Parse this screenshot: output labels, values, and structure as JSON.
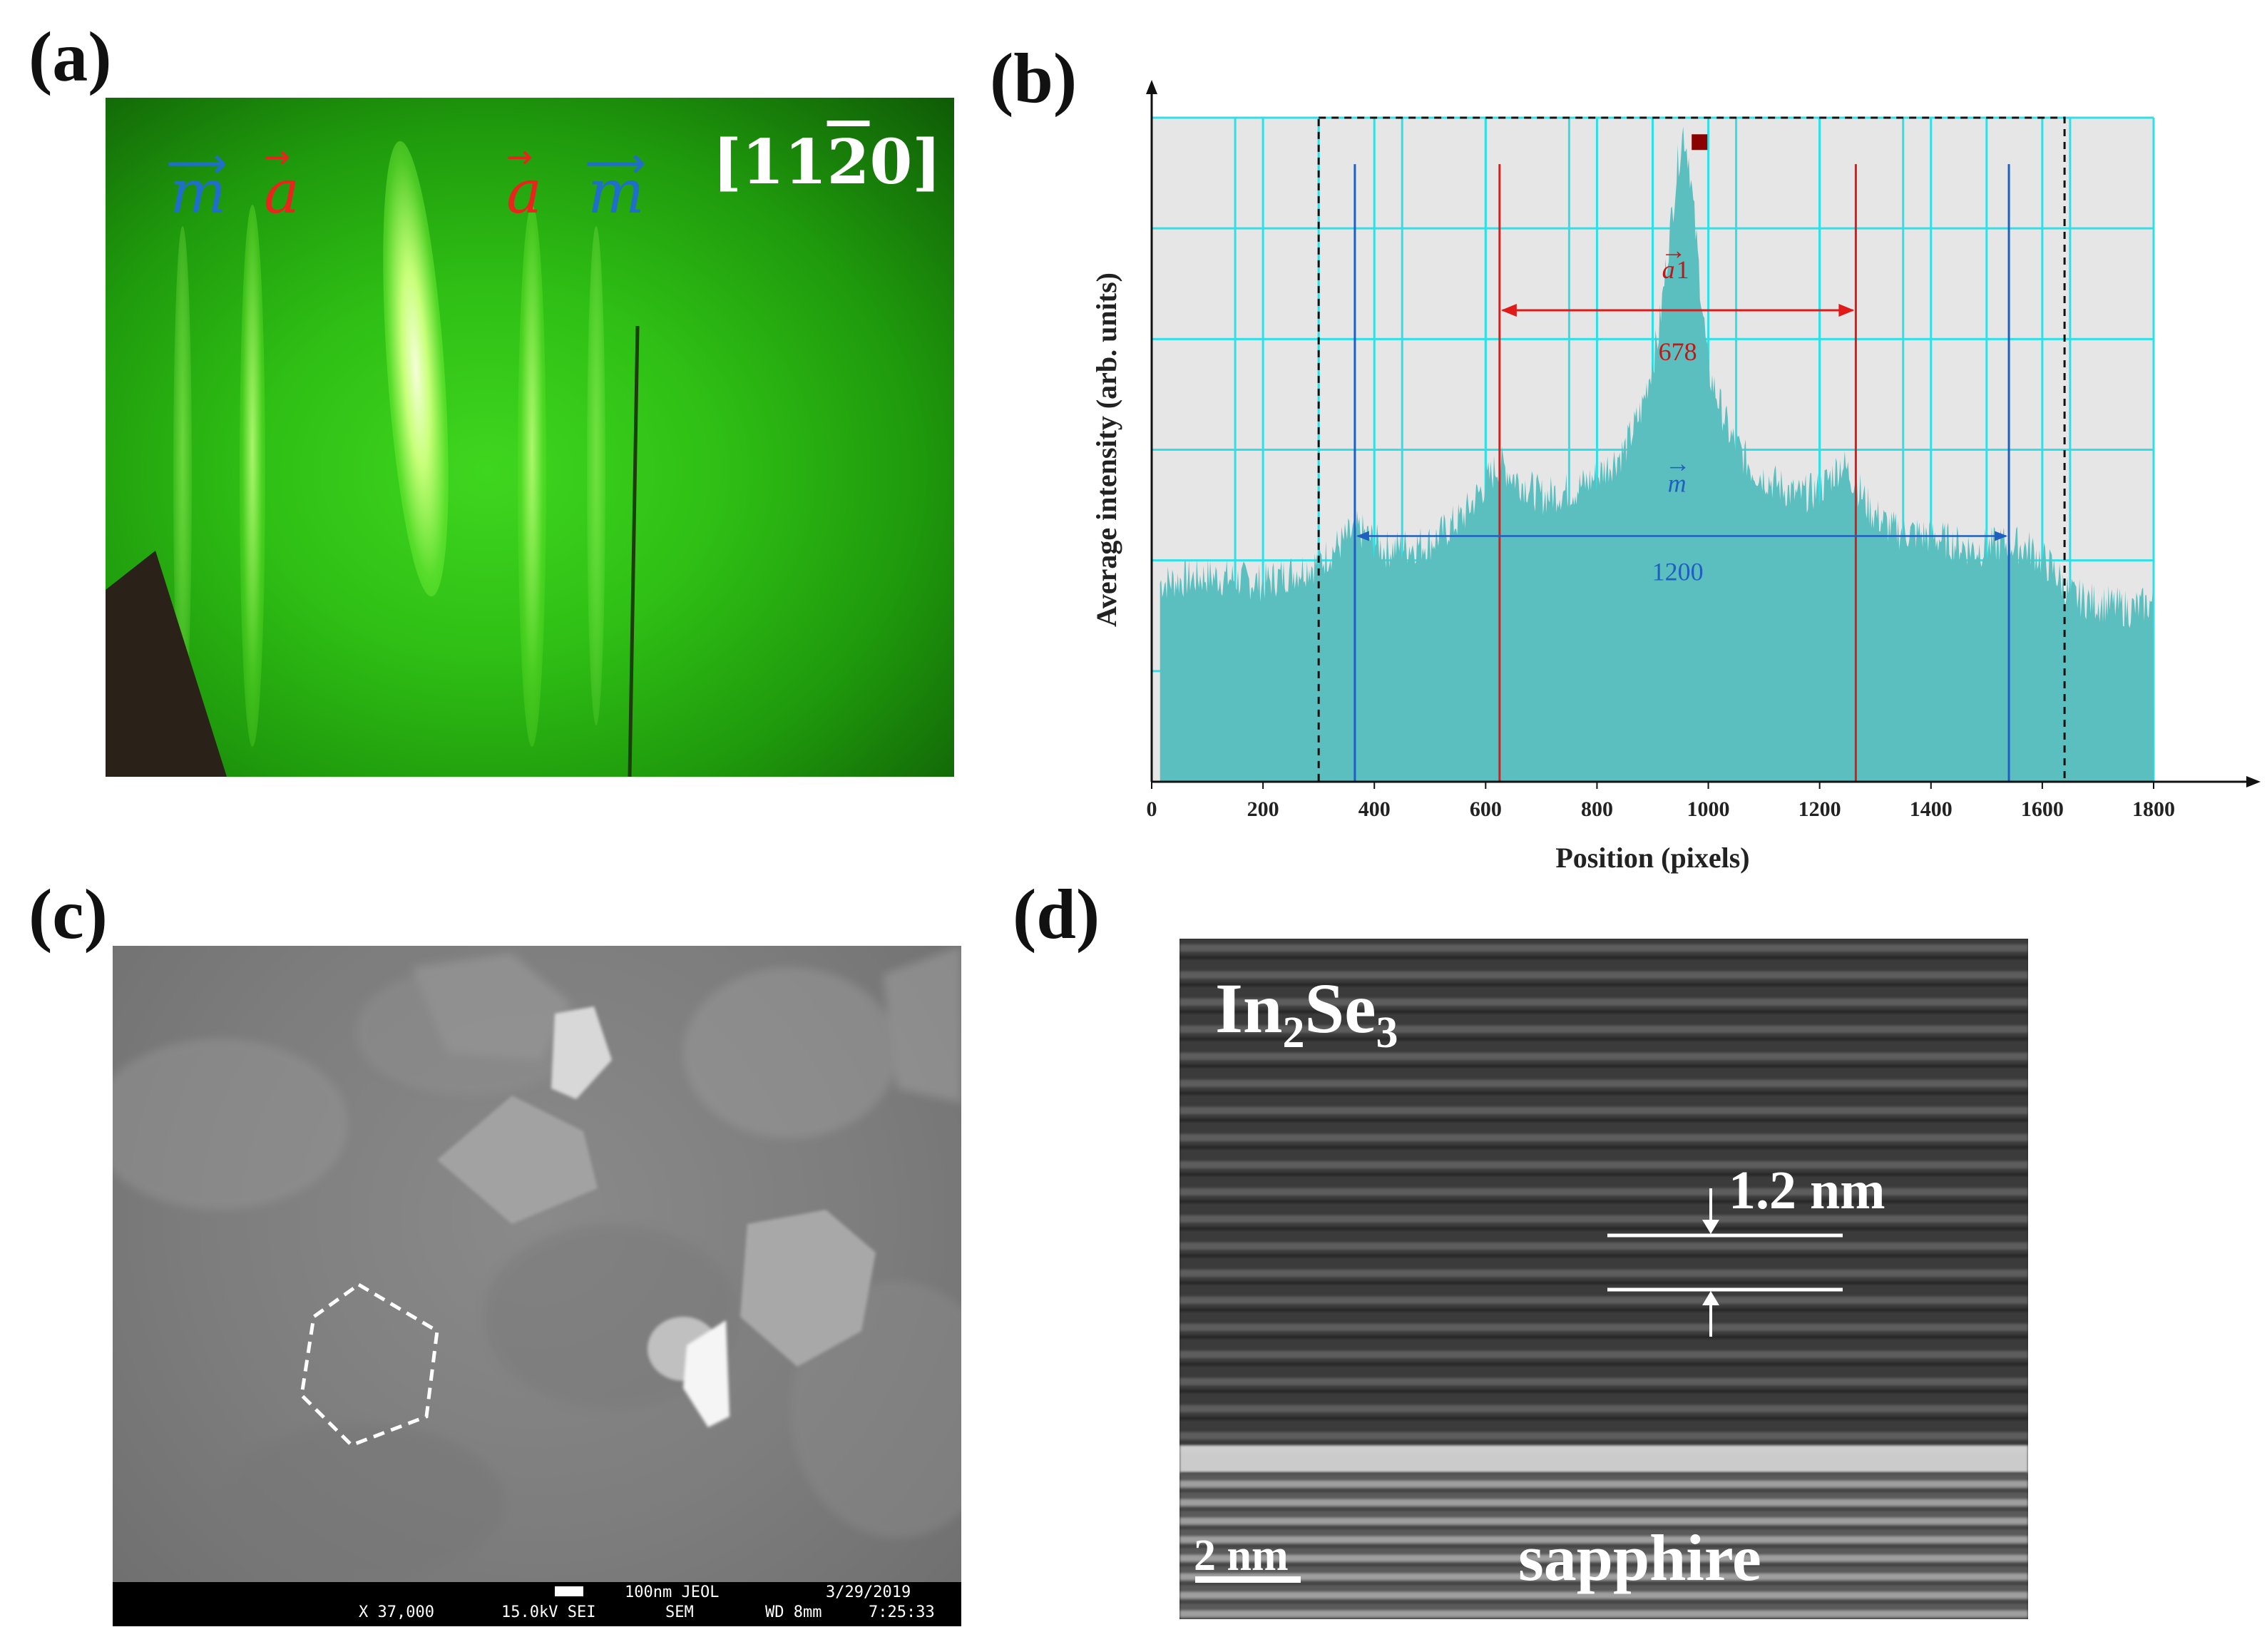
{
  "panels": {
    "a": {
      "label": "(a)",
      "streak_labels": [
        "m",
        "a",
        "a",
        "m"
      ],
      "zone_axis": "[11",
      "zone_axis_bar": "2",
      "zone_axis_end": "0]",
      "colors": {
        "m": "#1f6fc9",
        "a": "#e8251c"
      }
    },
    "b": {
      "label": "(b)"
    },
    "c": {
      "label": "(c)",
      "sem_info": {
        "scale": "100nm JEOL",
        "date": "3/29/2019",
        "magnification": "X 37,000",
        "voltage": "15.0kV SEI",
        "mode": "SEM",
        "wd": "WD 8mm",
        "time": "7:25:33"
      }
    },
    "d": {
      "label": "(d)",
      "material_main": "In",
      "material_sub1": "2",
      "material_mid": "Se",
      "material_sub2": "3",
      "spacing_label": "1.2 nm",
      "scale_label": "2 nm",
      "substrate_label": "sapphire"
    }
  },
  "chart_data": {
    "type": "area",
    "xlabel": "Position (pixels)",
    "ylabel": "Average intensity (arb. units)",
    "xlim": [
      0,
      1800
    ],
    "x_ticks": [
      0,
      200,
      400,
      600,
      800,
      1000,
      1200,
      1400,
      1600,
      1800
    ],
    "grid": true,
    "fill_color": "#5bbfbf",
    "grid_color": "#2fe0e8",
    "profile": {
      "x": [
        15,
        100,
        200,
        300,
        340,
        370,
        420,
        500,
        560,
        600,
        625,
        650,
        700,
        760,
        800,
        850,
        880,
        910,
        930,
        945,
        955,
        965,
        980,
        1000,
        1040,
        1080,
        1120,
        1160,
        1200,
        1240,
        1265,
        1290,
        1330,
        1400,
        1480,
        1540,
        1580,
        1620,
        1650,
        1700,
        1760,
        1800
      ],
      "y": [
        0.3,
        0.31,
        0.3,
        0.33,
        0.36,
        0.38,
        0.35,
        0.36,
        0.4,
        0.45,
        0.48,
        0.46,
        0.43,
        0.44,
        0.46,
        0.5,
        0.56,
        0.67,
        0.82,
        0.93,
        0.98,
        0.94,
        0.8,
        0.62,
        0.52,
        0.47,
        0.45,
        0.43,
        0.44,
        0.48,
        0.45,
        0.41,
        0.38,
        0.37,
        0.35,
        0.36,
        0.35,
        0.32,
        0.28,
        0.27,
        0.26,
        0.27
      ]
    },
    "peak_marker_x": 965,
    "dashed_box_x": [
      300,
      1640
    ],
    "red_lines_x": [
      625,
      1265
    ],
    "blue_lines_x": [
      365,
      1540
    ],
    "annotations": {
      "a_label": "a",
      "a_label_suffix": "1",
      "a_spacing": "678",
      "m_label": "m",
      "m_spacing": "1200"
    }
  }
}
